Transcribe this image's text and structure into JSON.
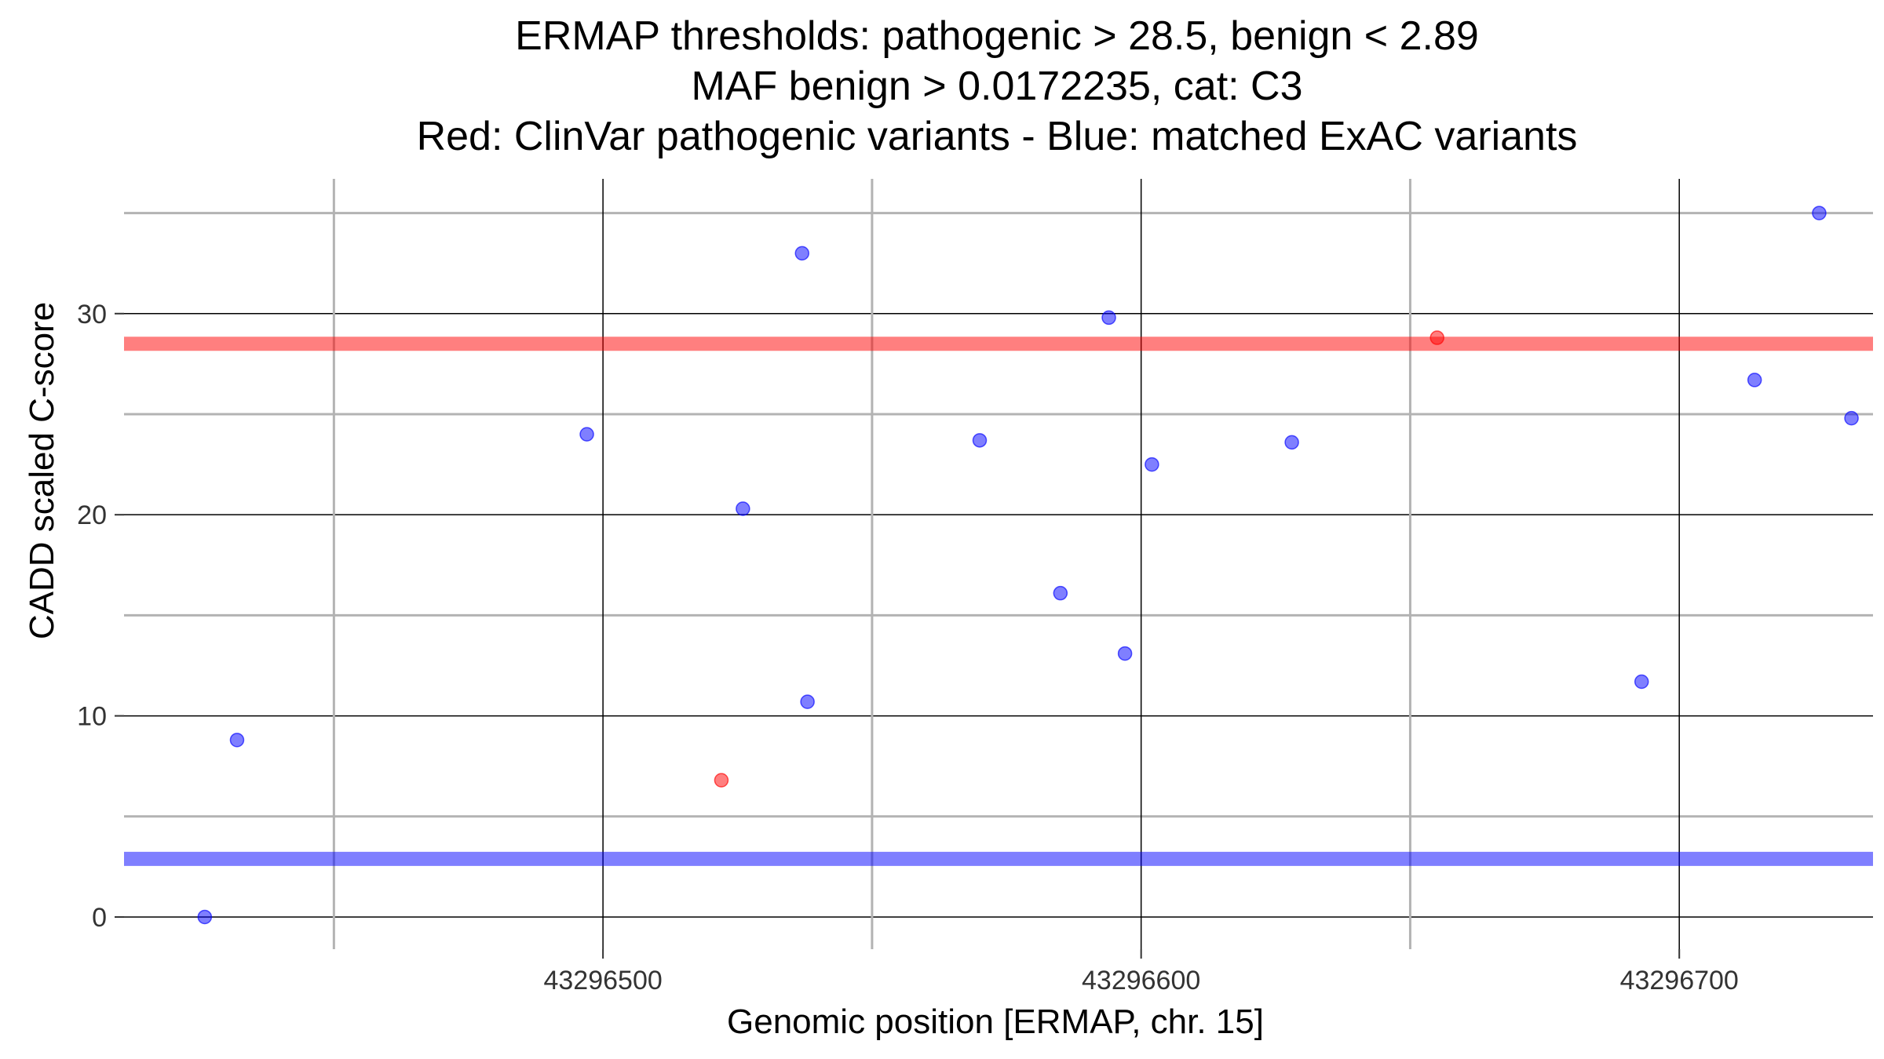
{
  "chart_data": {
    "type": "scatter",
    "title_lines": [
      "ERMAP thresholds: pathogenic > 28.5, benign < 2.89",
      "MAF benign > 0.0172235, cat: C3",
      "Red: ClinVar pathogenic variants - Blue: matched ExAC variants"
    ],
    "xlabel": "Genomic position [ERMAP, chr. 15]",
    "ylabel": "CADD scaled C-score",
    "xlim": [
      43296411,
      43296736
    ],
    "ylim": [
      -1.6,
      36.7
    ],
    "x_major_ticks": [
      43296450,
      43296550,
      43296650
    ],
    "x_tick_labels": [
      {
        "value": 43296500,
        "label": "43296500"
      },
      {
        "value": 43296600,
        "label": "43296600"
      },
      {
        "value": 43296700,
        "label": "43296700"
      }
    ],
    "y_minor_ticks": [
      5,
      15,
      25,
      35
    ],
    "y_tick_labels": [
      {
        "value": 0,
        "label": "0"
      },
      {
        "value": 10,
        "label": "10"
      },
      {
        "value": 20,
        "label": "20"
      },
      {
        "value": 30,
        "label": "30"
      }
    ],
    "thresholds": [
      {
        "name": "pathogenic",
        "value": 28.5,
        "color": "#ff0000"
      },
      {
        "name": "benign",
        "value": 2.89,
        "color": "#0000ff"
      }
    ],
    "series": [
      {
        "name": "ClinVar pathogenic variants",
        "color": "#ff0000",
        "points": [
          {
            "x": 43296522,
            "y": 6.8
          },
          {
            "x": 43296655,
            "y": 28.8
          }
        ]
      },
      {
        "name": "matched ExAC variants",
        "color": "#0000ff",
        "points": [
          {
            "x": 43296426,
            "y": 0.0
          },
          {
            "x": 43296432,
            "y": 8.8
          },
          {
            "x": 43296497,
            "y": 24.0
          },
          {
            "x": 43296526,
            "y": 20.3
          },
          {
            "x": 43296537,
            "y": 33.0
          },
          {
            "x": 43296538,
            "y": 10.7
          },
          {
            "x": 43296570,
            "y": 23.7
          },
          {
            "x": 43296585,
            "y": 16.1
          },
          {
            "x": 43296594,
            "y": 29.8
          },
          {
            "x": 43296597,
            "y": 13.1
          },
          {
            "x": 43296602,
            "y": 22.5
          },
          {
            "x": 43296628,
            "y": 23.6
          },
          {
            "x": 43296693,
            "y": 11.7
          },
          {
            "x": 43296714,
            "y": 26.7
          },
          {
            "x": 43296726,
            "y": 35.0
          },
          {
            "x": 43296732,
            "y": 24.8
          }
        ]
      }
    ]
  }
}
